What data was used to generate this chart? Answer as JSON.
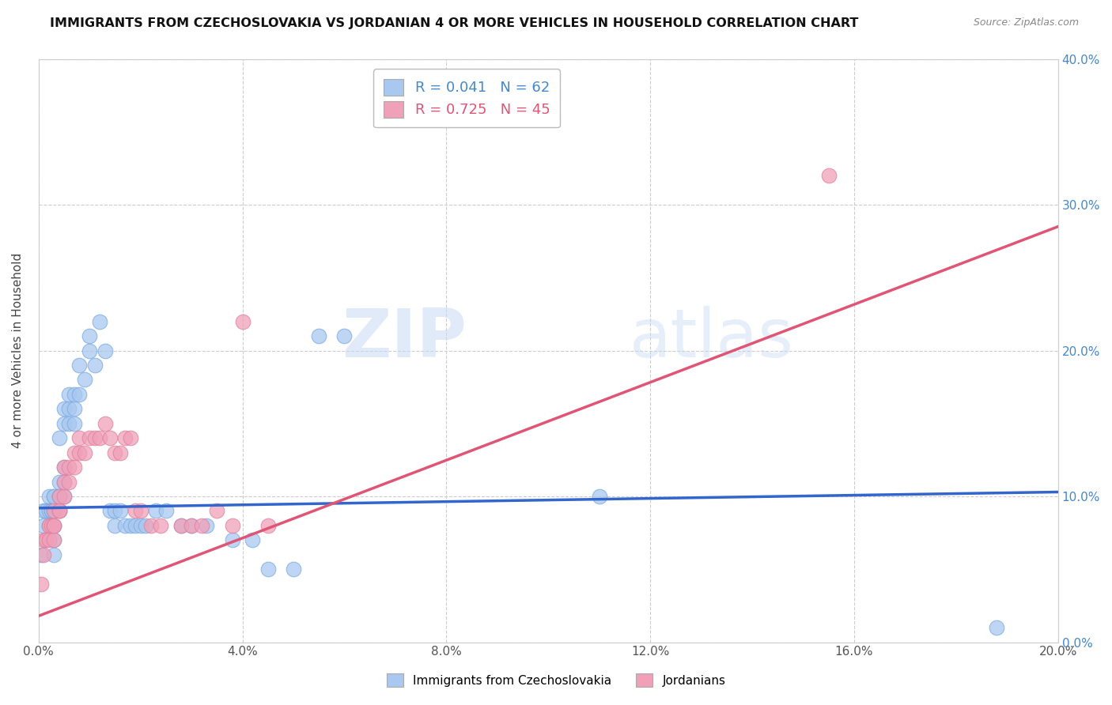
{
  "title": "IMMIGRANTS FROM CZECHOSLOVAKIA VS JORDANIAN 4 OR MORE VEHICLES IN HOUSEHOLD CORRELATION CHART",
  "source": "Source: ZipAtlas.com",
  "ylabel": "4 or more Vehicles in Household",
  "xlim": [
    0.0,
    0.2
  ],
  "ylim": [
    0.0,
    0.4
  ],
  "xticks": [
    0.0,
    0.04,
    0.08,
    0.12,
    0.16,
    0.2
  ],
  "yticks": [
    0.0,
    0.1,
    0.2,
    0.3,
    0.4
  ],
  "xtick_labels": [
    "0.0%",
    "4.0%",
    "8.0%",
    "12.0%",
    "16.0%",
    "20.0%"
  ],
  "ytick_labels": [
    "0.0%",
    "10.0%",
    "20.0%",
    "30.0%",
    "40.0%"
  ],
  "blue_R": 0.041,
  "blue_N": 62,
  "pink_R": 0.725,
  "pink_N": 45,
  "blue_color": "#a8c8f0",
  "pink_color": "#f0a0b8",
  "blue_line_color": "#3366cc",
  "pink_line_color": "#e05575",
  "legend_label_blue": "Immigrants from Czechoslovakia",
  "legend_label_pink": "Jordanians",
  "watermark_zip": "ZIP",
  "watermark_atlas": "atlas",
  "blue_trend_x": [
    0.0,
    0.2
  ],
  "blue_trend_y": [
    0.092,
    0.103
  ],
  "pink_trend_x": [
    0.0,
    0.2
  ],
  "pink_trend_y": [
    0.018,
    0.285
  ],
  "blue_scatter_x": [
    0.0005,
    0.001,
    0.001,
    0.0015,
    0.0015,
    0.002,
    0.002,
    0.002,
    0.0025,
    0.0025,
    0.003,
    0.003,
    0.003,
    0.003,
    0.003,
    0.003,
    0.004,
    0.004,
    0.004,
    0.004,
    0.004,
    0.005,
    0.005,
    0.005,
    0.005,
    0.005,
    0.006,
    0.006,
    0.006,
    0.007,
    0.007,
    0.007,
    0.008,
    0.008,
    0.009,
    0.01,
    0.01,
    0.011,
    0.012,
    0.013,
    0.014,
    0.015,
    0.015,
    0.016,
    0.017,
    0.018,
    0.019,
    0.02,
    0.021,
    0.023,
    0.025,
    0.028,
    0.03,
    0.033,
    0.038,
    0.042,
    0.045,
    0.05,
    0.055,
    0.06,
    0.11,
    0.188
  ],
  "blue_scatter_y": [
    0.06,
    0.08,
    0.09,
    0.07,
    0.09,
    0.08,
    0.09,
    0.1,
    0.09,
    0.09,
    0.06,
    0.07,
    0.08,
    0.09,
    0.1,
    0.1,
    0.09,
    0.1,
    0.1,
    0.11,
    0.14,
    0.1,
    0.11,
    0.12,
    0.15,
    0.16,
    0.15,
    0.16,
    0.17,
    0.15,
    0.16,
    0.17,
    0.17,
    0.19,
    0.18,
    0.2,
    0.21,
    0.19,
    0.22,
    0.2,
    0.09,
    0.09,
    0.08,
    0.09,
    0.08,
    0.08,
    0.08,
    0.08,
    0.08,
    0.09,
    0.09,
    0.08,
    0.08,
    0.08,
    0.07,
    0.07,
    0.05,
    0.05,
    0.21,
    0.21,
    0.1,
    0.01
  ],
  "pink_scatter_x": [
    0.0005,
    0.001,
    0.001,
    0.0015,
    0.002,
    0.002,
    0.0025,
    0.003,
    0.003,
    0.003,
    0.003,
    0.004,
    0.004,
    0.004,
    0.005,
    0.005,
    0.005,
    0.006,
    0.006,
    0.007,
    0.007,
    0.008,
    0.008,
    0.009,
    0.01,
    0.011,
    0.012,
    0.013,
    0.014,
    0.015,
    0.016,
    0.017,
    0.018,
    0.019,
    0.02,
    0.022,
    0.024,
    0.028,
    0.03,
    0.032,
    0.035,
    0.038,
    0.04,
    0.045,
    0.155
  ],
  "pink_scatter_y": [
    0.04,
    0.06,
    0.07,
    0.07,
    0.07,
    0.08,
    0.08,
    0.07,
    0.08,
    0.08,
    0.09,
    0.09,
    0.09,
    0.1,
    0.1,
    0.11,
    0.12,
    0.11,
    0.12,
    0.12,
    0.13,
    0.13,
    0.14,
    0.13,
    0.14,
    0.14,
    0.14,
    0.15,
    0.14,
    0.13,
    0.13,
    0.14,
    0.14,
    0.09,
    0.09,
    0.08,
    0.08,
    0.08,
    0.08,
    0.08,
    0.09,
    0.08,
    0.22,
    0.08,
    0.32
  ]
}
